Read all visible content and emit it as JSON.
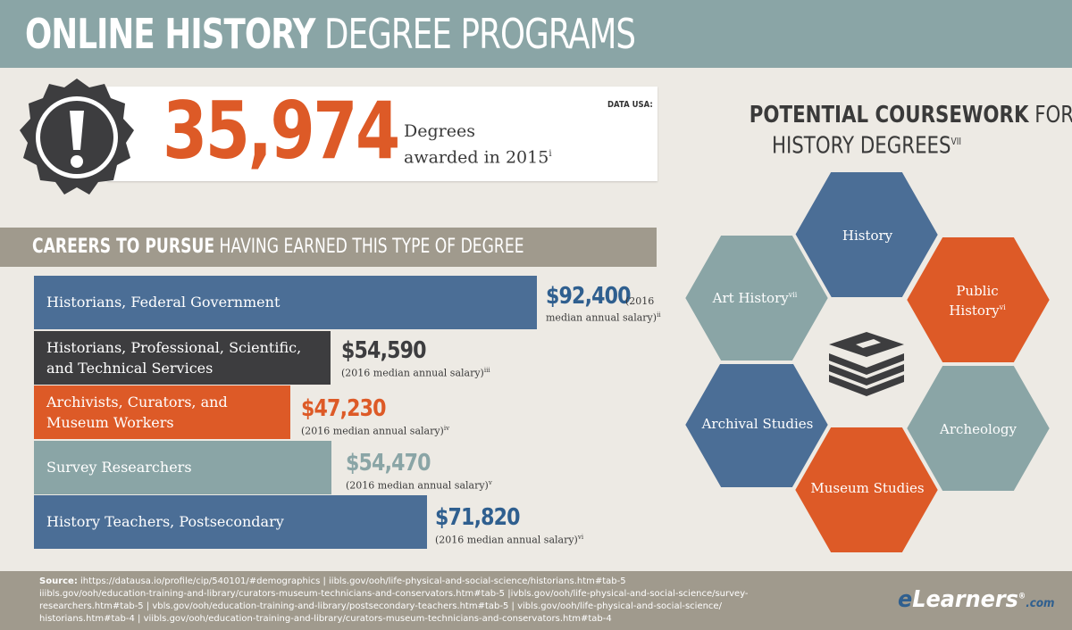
{
  "title": {
    "bold": "ONLINE HISTORY",
    "light": "DEGREE PROGRAMS"
  },
  "stat": {
    "number": "35,974",
    "label_line1": "Degrees",
    "label_line2": "awarded in 2015",
    "label_sup": "i",
    "source_tag": "DATA USA:"
  },
  "careers_header": {
    "bold": "CAREERS TO PURSUE",
    "light": "HAVING EARNED THIS TYPE OF DEGREE"
  },
  "careers": [
    {
      "job": "Historians, Federal Government",
      "salary": "$92,400",
      "note_a": "(2016",
      "note_b": "median annual salary)",
      "sup": "ii",
      "color": "#4b6e96",
      "salary_color": "#2f5f8f",
      "bar_fraction": 1.0
    },
    {
      "job": "Historians, Professional, Scientific, and Technical Services",
      "salary": "$54,590",
      "note": "(2016 median annual salary)",
      "sup": "iii",
      "color": "#3d3d3f",
      "salary_color": "#3d3d3f",
      "bar_fraction": 0.59
    },
    {
      "job": "Archivists, Curators, and Museum Workers",
      "salary": "$47,230",
      "note": "(2016 median annual salary)",
      "sup": "iv",
      "color": "#dd5a27",
      "salary_color": "#dd5a27",
      "bar_fraction": 0.51
    },
    {
      "job": "Survey Researchers",
      "salary": "$54,470",
      "note": "(2016 median annual salary)",
      "sup": "v",
      "color": "#8aa5a6",
      "salary_color": "#8aa5a6",
      "bar_fraction": 0.59
    },
    {
      "job": "History Teachers, Postsecondary",
      "salary": "$71,820",
      "note": "(2016 median annual salary)",
      "sup": "vi",
      "color": "#4b6e96",
      "salary_color": "#2f5f8f",
      "bar_fraction": 0.78
    }
  ],
  "coursework": {
    "title_bold": "POTENTIAL COURSEWORK",
    "title_light_a": "FOR",
    "title_light_b": "HISTORY DEGREES",
    "title_sup": "VII",
    "items": [
      {
        "label": "History",
        "color": "#4b6e96"
      },
      {
        "label": "Public History",
        "sup": "vi",
        "color": "#dd5a27"
      },
      {
        "label": "Archeology",
        "color": "#8aa5a6"
      },
      {
        "label": "Museum Studies",
        "color": "#dd5a27"
      },
      {
        "label": "Archival Studies",
        "color": "#4b6e96"
      },
      {
        "label": "Art History",
        "sup": "vii",
        "color": "#8aa5a6"
      }
    ]
  },
  "sources": {
    "label": "Source:",
    "line1": "ihttps://datausa.io/profile/cip/540101/#demographics | iibls.gov/ooh/life-physical-and-social-science/historians.htm#tab-5",
    "line2": "iiibls.gov/ooh/education-training-and-library/curators-museum-technicians-and-conservators.htm#tab-5 |ivbls.gov/ooh/life-physical-and-social-science/survey-",
    "line3": "researchers.htm#tab-5 | vbls.gov/ooh/education-training-and-library/postsecondary-teachers.htm#tab-5 | vibls.gov/ooh/life-physical-and-social-science/",
    "line4": "historians.htm#tab-4 | viibls.gov/ooh/education-training-and-library/curators-museum-technicians-and-conservators.htm#tab-4"
  },
  "logo": {
    "e": "e",
    "rest": "Learners",
    "reg": "®",
    "com": ".com"
  }
}
